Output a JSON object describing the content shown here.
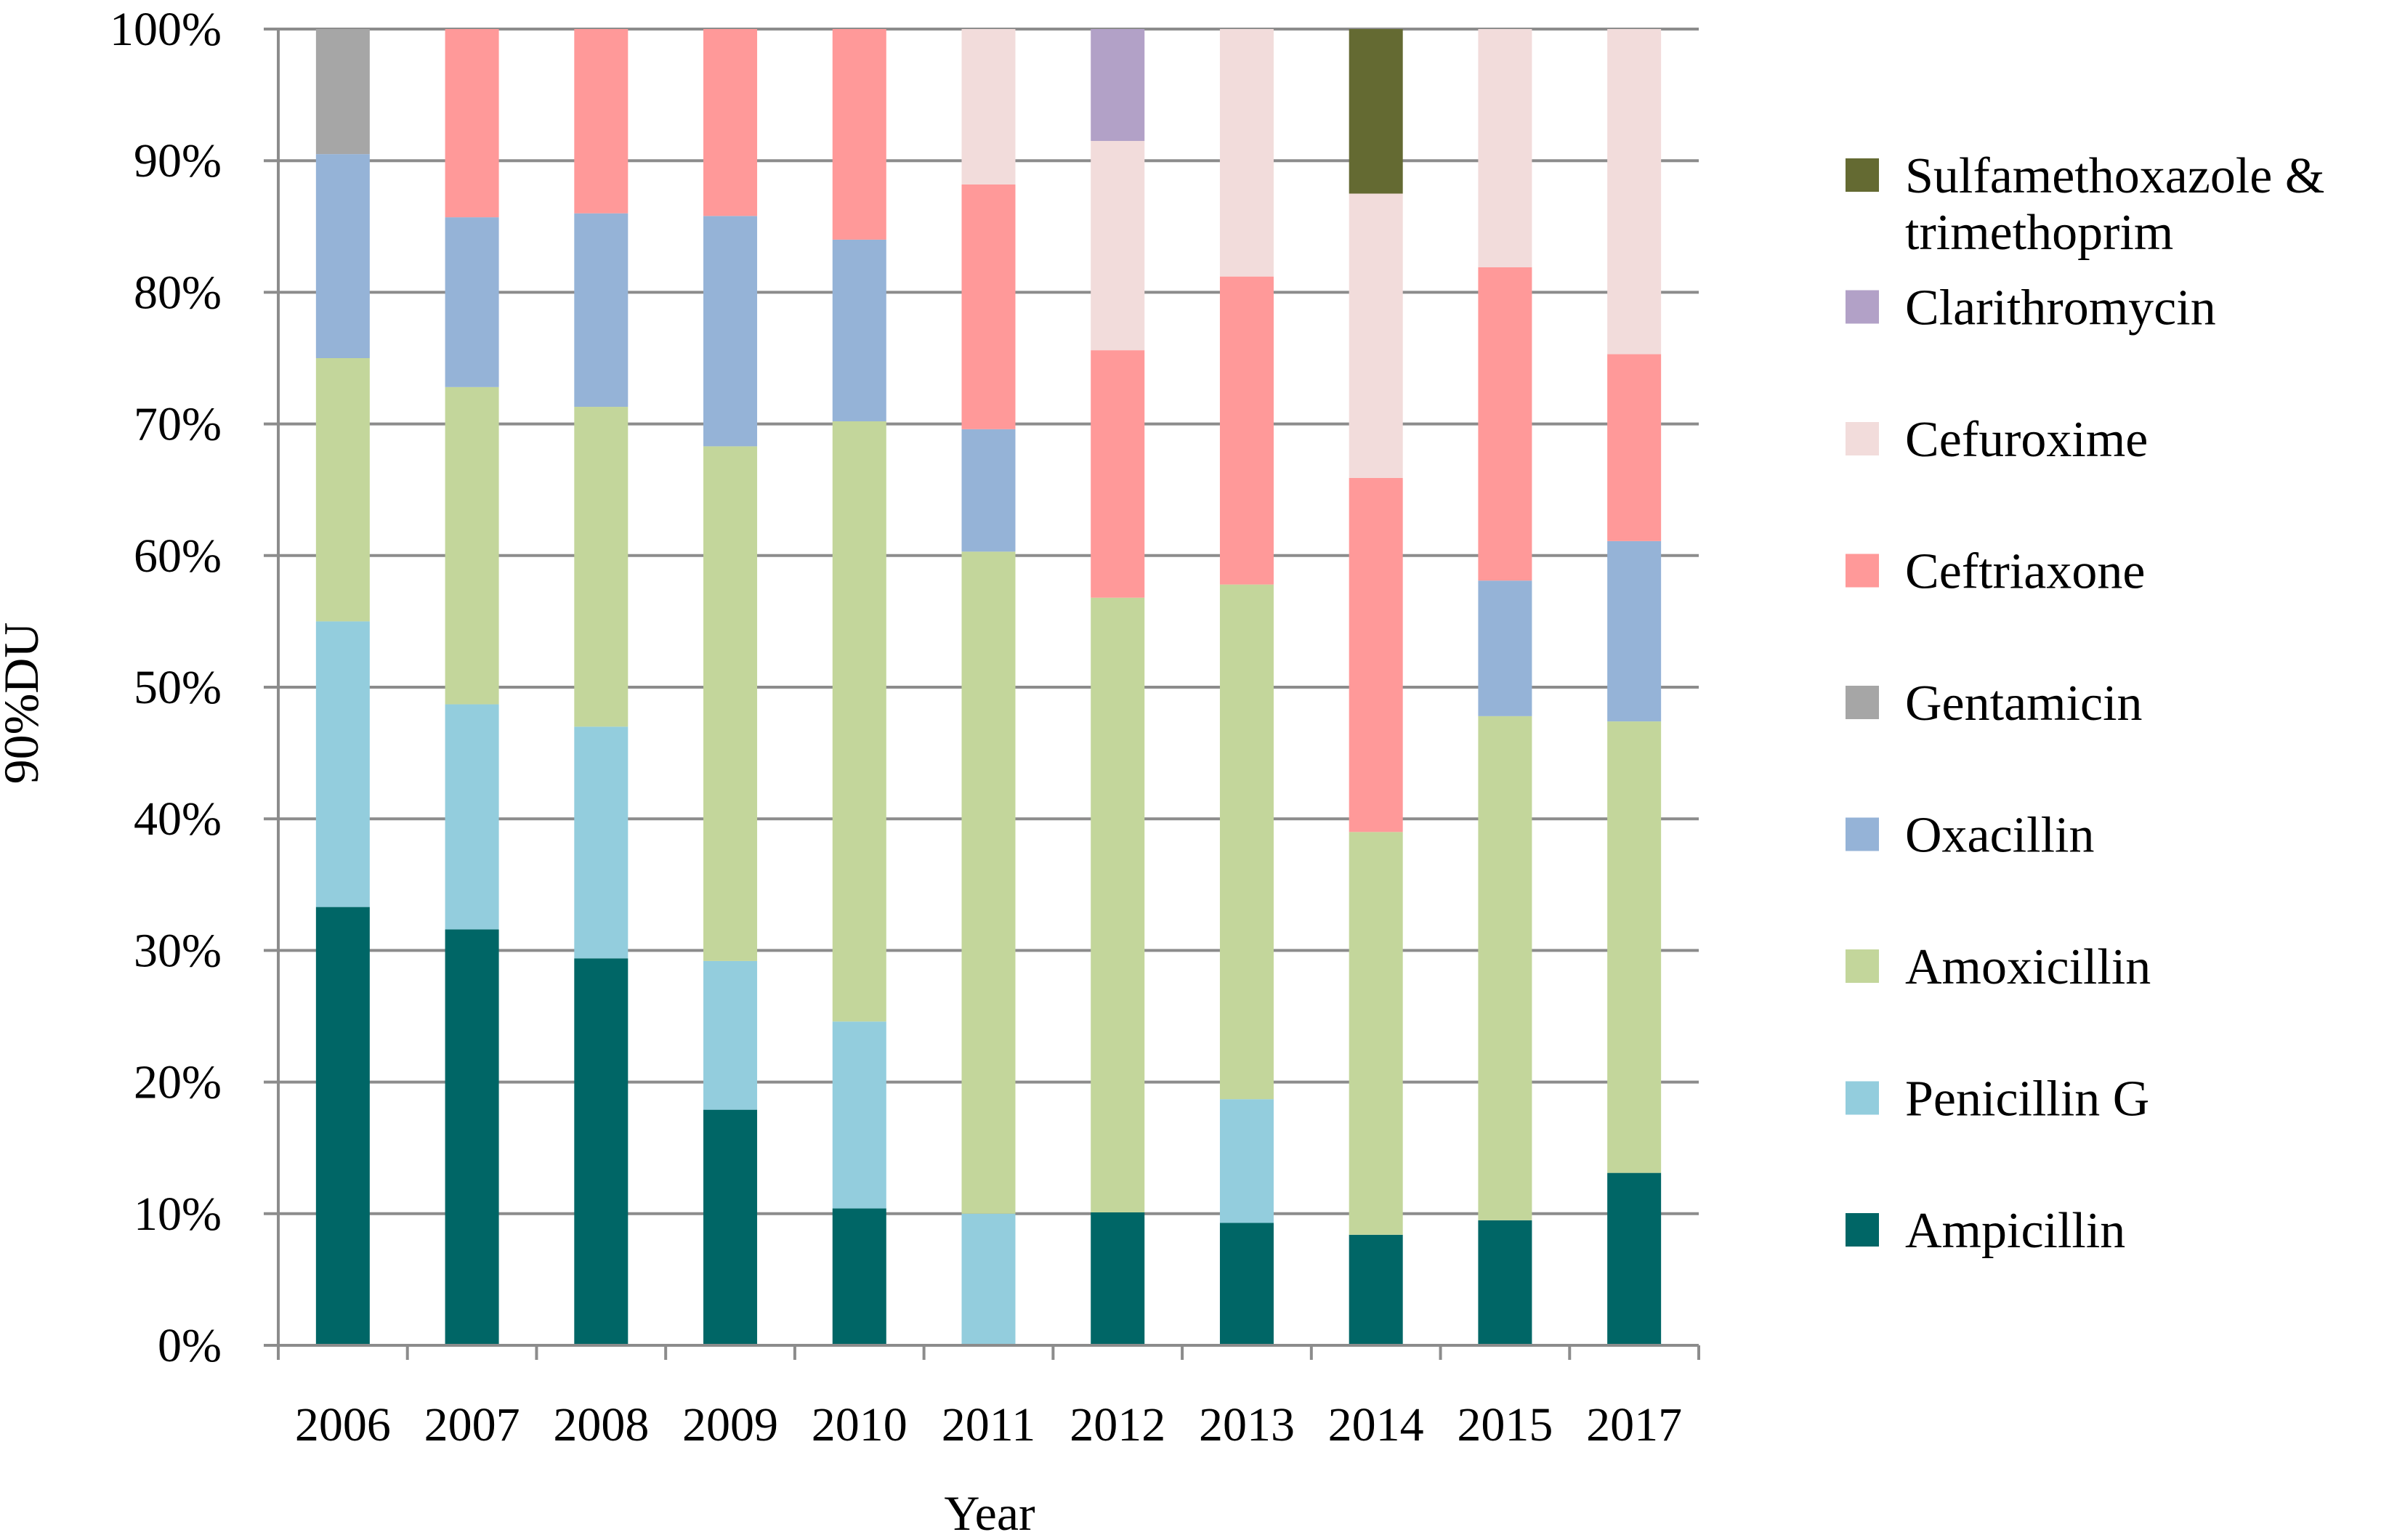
{
  "chart_data": {
    "type": "bar",
    "stacked": true,
    "normalized": true,
    "title": "",
    "xlabel": "Year",
    "ylabel": "90%DU",
    "ylim": [
      0,
      100
    ],
    "y_ticks": [
      "0%",
      "10%",
      "20%",
      "30%",
      "40%",
      "50%",
      "60%",
      "70%",
      "80%",
      "90%",
      "100%"
    ],
    "grid": "horizontal",
    "legend_position": "right",
    "categories": [
      "2006",
      "2007",
      "2008",
      "2009",
      "2010",
      "2011",
      "2012",
      "2013",
      "2014",
      "2015",
      "2017"
    ],
    "series": [
      {
        "name": "Ampicillin",
        "color": "#006666",
        "values": [
          33.3,
          31.6,
          29.4,
          17.9,
          10.4,
          0,
          10.1,
          9.3,
          8.4,
          9.5,
          13.1
        ]
      },
      {
        "name": "Penicillin G",
        "color": "#93CDDD",
        "values": [
          21.7,
          17.1,
          17.6,
          11.3,
          14.2,
          10.0,
          0,
          9.4,
          0,
          0,
          0
        ]
      },
      {
        "name": "Amoxicillin",
        "color": "#C3D69B",
        "values": [
          20.0,
          24.1,
          24.3,
          39.1,
          45.6,
          50.3,
          46.7,
          39.1,
          30.6,
          38.3,
          34.3
        ]
      },
      {
        "name": "Oxacillin",
        "color": "#95B3D7",
        "values": [
          15.5,
          12.9,
          14.7,
          17.5,
          13.8,
          9.3,
          0,
          0,
          0,
          10.3,
          13.7
        ]
      },
      {
        "name": "Gentamicin",
        "color": "#A6A6A6",
        "values": [
          9.5,
          0,
          0,
          0,
          0,
          0,
          0,
          0,
          0,
          0,
          0
        ]
      },
      {
        "name": "Ceftriaxone",
        "color": "#FF9999",
        "values": [
          0,
          14.3,
          14.0,
          14.2,
          16.0,
          18.6,
          18.8,
          23.4,
          26.9,
          23.8,
          14.2
        ]
      },
      {
        "name": "Cefuroxime",
        "color": "#F2DCDB",
        "values": [
          0,
          0,
          0,
          0,
          0,
          11.8,
          15.9,
          18.8,
          21.6,
          18.1,
          24.7
        ]
      },
      {
        "name": "Clarithromycin",
        "color": "#B2A1C7",
        "values": [
          0,
          0,
          0,
          0,
          0,
          0,
          8.5,
          0,
          0,
          0,
          0
        ]
      },
      {
        "name": "Sulfamethoxazole & trimethoprim",
        "color": "#646A32",
        "values": [
          0,
          0,
          0,
          0,
          0,
          0,
          0,
          0,
          12.5,
          0,
          0
        ]
      }
    ],
    "legend_order": [
      {
        "lines": [
          "Sulfamethoxazole &",
          "trimethoprim"
        ],
        "color": "#646A32"
      },
      {
        "lines": [
          "Clarithromycin"
        ],
        "color": "#B2A1C7"
      },
      {
        "lines": [
          "Cefuroxime"
        ],
        "color": "#F2DCDB"
      },
      {
        "lines": [
          "Ceftriaxone"
        ],
        "color": "#FF9999"
      },
      {
        "lines": [
          "Gentamicin"
        ],
        "color": "#A6A6A6"
      },
      {
        "lines": [
          "Oxacillin"
        ],
        "color": "#95B3D7"
      },
      {
        "lines": [
          "Amoxicillin"
        ],
        "color": "#C3D69B"
      },
      {
        "lines": [
          "Penicillin G"
        ],
        "color": "#93CDDD"
      },
      {
        "lines": [
          "Ampicillin"
        ],
        "color": "#006666"
      }
    ]
  }
}
